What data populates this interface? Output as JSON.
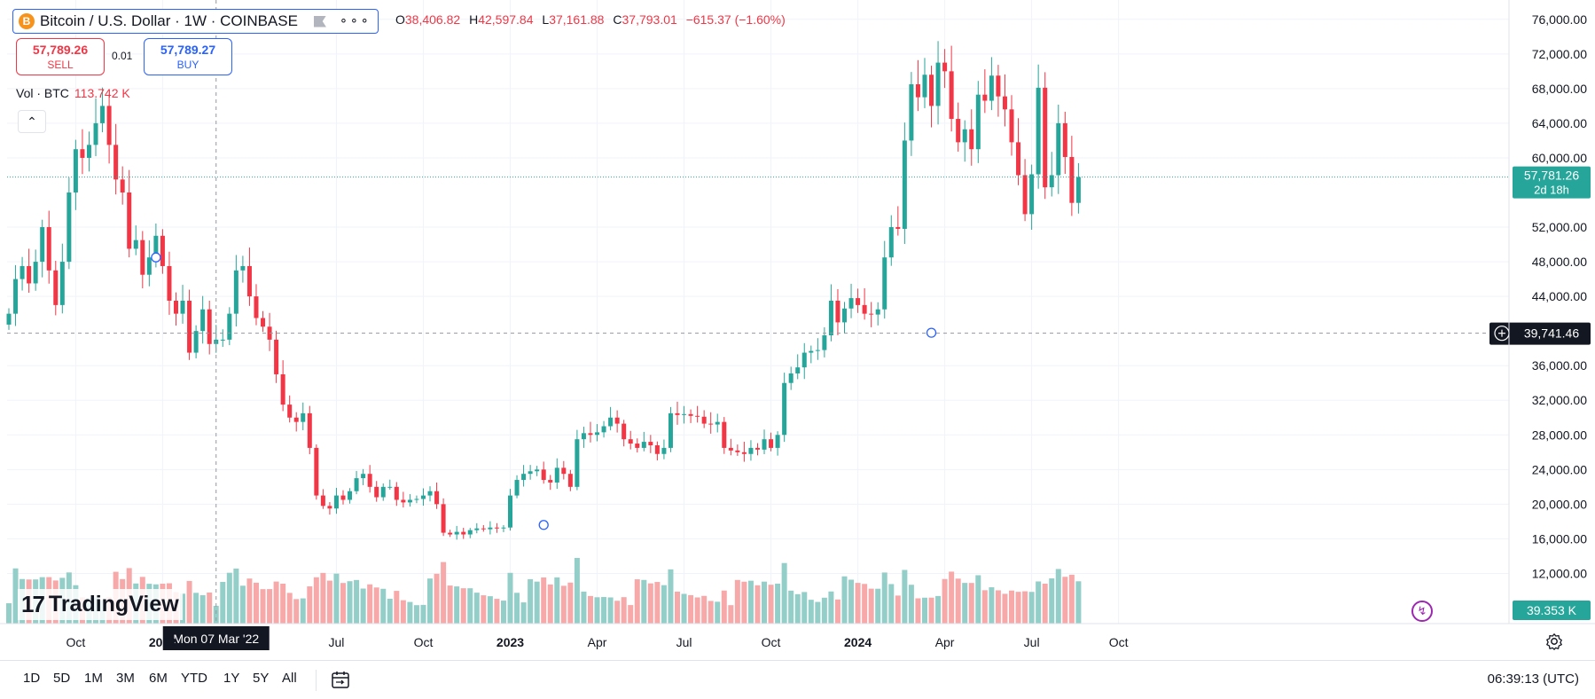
{
  "header": {
    "coin_icon": "B",
    "title": "Bitcoin / U.S. Dollar · 1W · COINBASE",
    "ohlc": [
      {
        "k": "O",
        "v": "38,406.82"
      },
      {
        "k": "H",
        "v": "42,597.84"
      },
      {
        "k": "L",
        "v": "37,161.88"
      },
      {
        "k": "C",
        "v": "37,793.01"
      },
      {
        "k": "",
        "v": "−615.37 (−1.60%)"
      }
    ]
  },
  "trade": {
    "sell_price": "57,789.26",
    "sell_label": "SELL",
    "spread": "0.01",
    "buy_price": "57,789.27",
    "buy_label": "BUY"
  },
  "volume_legend": {
    "label": "Vol · BTC",
    "value": "113.742 K"
  },
  "logo": {
    "mark": "17",
    "text": "TradingView"
  },
  "bottom": {
    "ranges": [
      "1D",
      "5D",
      "1M",
      "3M",
      "6M",
      "YTD",
      "1Y",
      "5Y",
      "All"
    ],
    "clock": "06:39:13 (UTC)"
  },
  "colors": {
    "up": "#26a69a",
    "down": "#f23645",
    "up_vol": "#93cec8",
    "down_vol": "#f7a9aa",
    "accent": "#2962ff",
    "crosshair_tag": "#131722"
  },
  "chart_data": {
    "type": "candlestick",
    "yaxis": {
      "min": 10000,
      "max": 80000,
      "ticks": [
        80000,
        76000,
        72000,
        68000,
        64000,
        60000,
        52000,
        48000,
        44000,
        36000,
        32000,
        28000,
        24000,
        20000,
        16000,
        12000
      ],
      "tick_labels": [
        "80,000.00",
        "76,000.00",
        "72,000.00",
        "68,000.00",
        "64,000.00",
        "60,000.00",
        "52,000.00",
        "48,000.00",
        "44,000.00",
        "36,000.00",
        "32,000.00",
        "28,000.00",
        "24,000.00",
        "20,000.00",
        "16,000.00",
        "12,000.00"
      ]
    },
    "xaxis": {
      "labels": [
        {
          "t": "Oct",
          "i": 10,
          "bold": false
        },
        {
          "t": "2022",
          "i": 23,
          "bold": true
        },
        {
          "t": "Jul",
          "i": 49,
          "bold": false
        },
        {
          "t": "Oct",
          "i": 62,
          "bold": false
        },
        {
          "t": "2023",
          "i": 75,
          "bold": true
        },
        {
          "t": "Apr",
          "i": 88,
          "bold": false
        },
        {
          "t": "Jul",
          "i": 101,
          "bold": false
        },
        {
          "t": "Oct",
          "i": 114,
          "bold": false
        },
        {
          "t": "2024",
          "i": 127,
          "bold": true
        },
        {
          "t": "Apr",
          "i": 140,
          "bold": false
        },
        {
          "t": "Jul",
          "i": 153,
          "bold": false
        },
        {
          "t": "Oct",
          "i": 166,
          "bold": false
        }
      ]
    },
    "last_price": {
      "value": 57781.26,
      "label": "57,781.26",
      "countdown": "2d 18h"
    },
    "crosshair": {
      "price": 39741.46,
      "price_label": "39,741.46",
      "date_label": "Mon 07 Mar '22",
      "index": 31
    },
    "volume_label": "39.353 K",
    "closes": [
      42000,
      46000,
      47500,
      45500,
      48000,
      52000,
      47000,
      43000,
      48000,
      56000,
      61000,
      60000,
      61500,
      64000,
      66000,
      61500,
      57500,
      56000,
      49500,
      50500,
      46500,
      48500,
      51000,
      47500,
      43500,
      42000,
      43500,
      37500,
      40000,
      42500,
      38500,
      39000,
      39000,
      42000,
      47000,
      47500,
      44000,
      41500,
      40500,
      39000,
      35000,
      31500,
      30000,
      29500,
      30500,
      26500,
      21000,
      19800,
      19500,
      21000,
      20500,
      21500,
      23000,
      23500,
      22000,
      20800,
      22000,
      22000,
      20500,
      20200,
      20500,
      20600,
      21000,
      21500,
      20000,
      16700,
      16500,
      16800,
      16500,
      17000,
      17200,
      17100,
      17300,
      17200,
      17300,
      21000,
      22800,
      23500,
      23800,
      24000,
      22800,
      22500,
      24200,
      23500,
      22000,
      27500,
      28200,
      28000,
      28300,
      29000,
      30000,
      29300,
      27500,
      27000,
      26500,
      27200,
      26800,
      25800,
      26500,
      30500,
      30300,
      30400,
      30200,
      30100,
      29300,
      29200,
      29500,
      26500,
      26200,
      26000,
      25800,
      26500,
      26300,
      27500,
      26500,
      28000,
      34000,
      35100,
      35800,
      37500,
      37700,
      37800,
      39500,
      43500,
      41000,
      42600,
      43800,
      43000,
      42000,
      41900,
      42500,
      48500,
      52000,
      51800,
      62000,
      68500,
      67000,
      69600,
      66000,
      71000,
      70000,
      64500,
      61800,
      63300,
      61000,
      67300,
      66600,
      69500,
      67100,
      65600,
      61800,
      58000,
      53500,
      58100,
      68100,
      56600,
      58000,
      64000,
      60100,
      54800,
      57781
    ]
  }
}
